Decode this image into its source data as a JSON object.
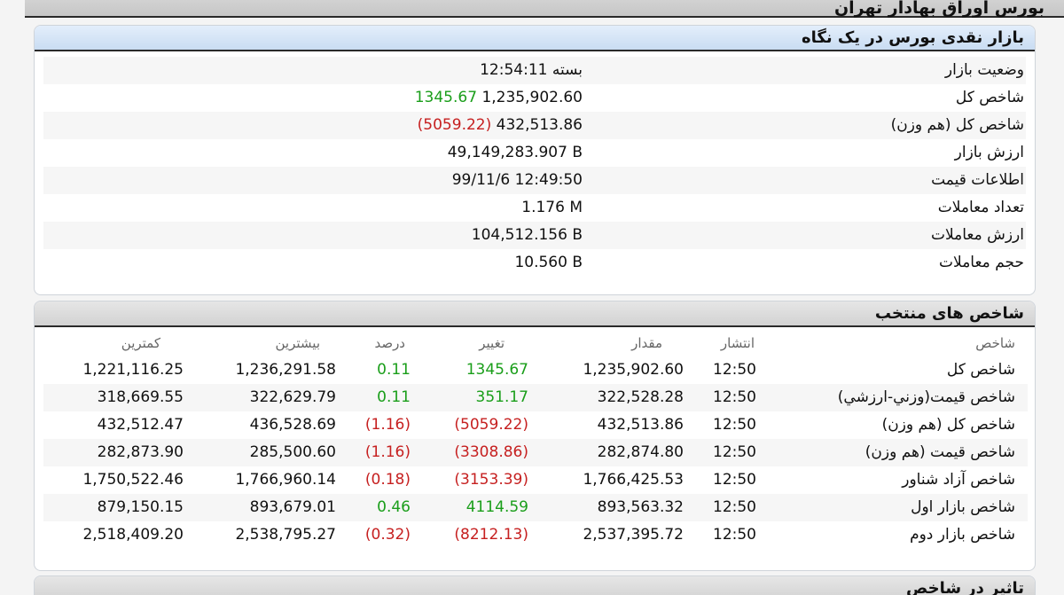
{
  "header": {
    "title": "بورس اوراق بهادار تهران"
  },
  "glance": {
    "title": "بازار نقدی بورس در یک نگاه",
    "rows": [
      {
        "label": "وضعیت بازار",
        "value": "بسته 12:54:11",
        "change": "",
        "change_sign": ""
      },
      {
        "label": "شاخص کل",
        "value": "1,235,902.60",
        "change": "1345.67",
        "change_sign": "pos"
      },
      {
        "label": "شاخص کل (هم وزن)",
        "value": "432,513.86",
        "change": "(5059.22)",
        "change_sign": "neg"
      },
      {
        "label": "ارزش بازار",
        "value": "49,149,283.907 B",
        "change": "",
        "change_sign": ""
      },
      {
        "label": "اطلاعات قیمت",
        "value": "99/11/6 12:49:50",
        "change": "",
        "change_sign": ""
      },
      {
        "label": "تعداد معاملات",
        "value": "1.176 M",
        "change": "",
        "change_sign": ""
      },
      {
        "label": "ارزش معاملات",
        "value": "104,512.156 B",
        "change": "",
        "change_sign": ""
      },
      {
        "label": "حجم معاملات",
        "value": "10.560 B",
        "change": "",
        "change_sign": ""
      }
    ]
  },
  "indices": {
    "title": "شاخص های منتخب",
    "columns": {
      "name": "شاخص",
      "time": "انتشار",
      "value": "مقدار",
      "change": "تغییر",
      "pct": "درصد",
      "high": "بیشترین",
      "low": "کمترین"
    },
    "rows": [
      {
        "name": "شاخص کل",
        "time": "12:50",
        "value": "1,235,902.60",
        "change": "1345.67",
        "pct": "0.11",
        "high": "1,236,291.58",
        "low": "1,221,116.25",
        "sign": "pos"
      },
      {
        "name": "شاخص قیمت(وزني-ارزشي)",
        "time": "12:50",
        "value": "322,528.28",
        "change": "351.17",
        "pct": "0.11",
        "high": "322,629.79",
        "low": "318,669.55",
        "sign": "pos"
      },
      {
        "name": "شاخص کل (هم وزن)",
        "time": "12:50",
        "value": "432,513.86",
        "change": "(5059.22)",
        "pct": "(1.16)",
        "high": "436,528.69",
        "low": "432,512.47",
        "sign": "neg"
      },
      {
        "name": "شاخص قیمت (هم وزن)",
        "time": "12:50",
        "value": "282,874.80",
        "change": "(3308.86)",
        "pct": "(1.16)",
        "high": "285,500.60",
        "low": "282,873.90",
        "sign": "neg"
      },
      {
        "name": "شاخص آزاد شناور",
        "time": "12:50",
        "value": "1,766,425.53",
        "change": "(3153.39)",
        "pct": "(0.18)",
        "high": "1,766,960.14",
        "low": "1,750,522.46",
        "sign": "neg"
      },
      {
        "name": "شاخص بازار اول",
        "time": "12:50",
        "value": "893,563.32",
        "change": "4114.59",
        "pct": "0.46",
        "high": "893,679.01",
        "low": "879,150.15",
        "sign": "pos"
      },
      {
        "name": "شاخص بازار دوم",
        "time": "12:50",
        "value": "2,537,395.72",
        "change": "(8212.13)",
        "pct": "(0.32)",
        "high": "2,538,795.27",
        "low": "2,518,409.20",
        "sign": "neg"
      }
    ]
  },
  "impact": {
    "title": "تاثیر در شاخص"
  },
  "colors": {
    "positive": "#1a9e1a",
    "negative": "#c62020",
    "title_bar": "#c9dcf2"
  }
}
